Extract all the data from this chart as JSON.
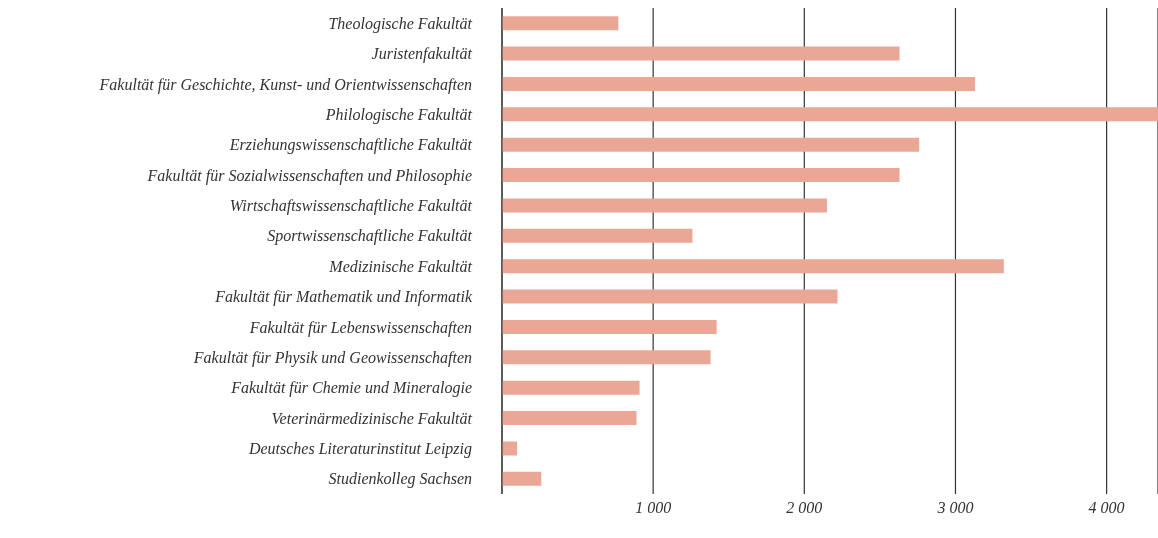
{
  "chart_data": {
    "type": "bar",
    "orientation": "horizontal",
    "categories": [
      "Theologische Fakultät",
      "Juristenfakultät",
      "Fakultät für Geschichte, Kunst- und Orientwissenschaften",
      "Philologische Fakultät",
      "Erziehungswissenschaftliche Fakultät",
      "Fakultät für Sozialwissenschaften und Philosophie",
      "Wirtschaftswissenschaftliche Fakultät",
      "Sportwissenschaftliche Fakultät",
      "Medizinische Fakultät",
      "Fakultät für Mathematik und Informatik",
      "Fakultät für Lebenswissenschaften",
      "Fakultät für Physik und Geowissenschaften",
      "Fakultät für Chemie und Mineralogie",
      "Veterinärmedizinische Fakultät",
      "Deutsches Literaturinstitut Leipzig",
      "Studienkolleg Sachsen"
    ],
    "values": [
      770,
      2630,
      3130,
      4340,
      2760,
      2630,
      2150,
      1260,
      3320,
      2220,
      1420,
      1380,
      910,
      890,
      100,
      260
    ],
    "color": "#eaa796",
    "xlim": [
      0,
      4340
    ],
    "xticks": [
      {
        "value": 1000,
        "label": "1 000"
      },
      {
        "value": 2000,
        "label": "2 000"
      },
      {
        "value": 3000,
        "label": "3 000"
      },
      {
        "value": 4000,
        "label": "4 000"
      }
    ],
    "grid": "x"
  }
}
